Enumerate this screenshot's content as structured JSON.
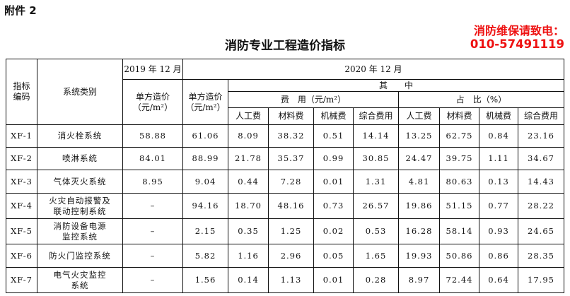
{
  "attachment_label": "附件 2",
  "title": "消防专业工程造价指标",
  "header": {
    "code": "指标\n编码",
    "category": "系统类别",
    "year2019": "2019 年 12 月",
    "year2020": "2020 年 12 月",
    "unit_price": "单方造价\n（元/m²）",
    "among": "其　　中",
    "cost_group": "费　用（元/m²）",
    "ratio_group": "占　比（%）",
    "sub_cols": [
      "人工费",
      "材料费",
      "机械费",
      "综合费用",
      "人工费",
      "材料费",
      "机械费",
      "综合费用"
    ]
  },
  "rows": [
    {
      "code": "XF-1",
      "name": "消火栓系统",
      "p2019": "58.88",
      "p2020": "61.06",
      "cost": [
        "8.09",
        "38.32",
        "0.51",
        "14.14"
      ],
      "ratio": [
        "13.25",
        "62.75",
        "0.84",
        "23.16"
      ]
    },
    {
      "code": "XF-2",
      "name": "喷淋系统",
      "p2019": "84.01",
      "p2020": "88.99",
      "cost": [
        "21.78",
        "35.37",
        "0.99",
        "30.85"
      ],
      "ratio": [
        "24.47",
        "39.75",
        "1.11",
        "34.67"
      ]
    },
    {
      "code": "XF-3",
      "name": "气体灭火系统",
      "p2019": "8.95",
      "p2020": "9.04",
      "cost": [
        "0.44",
        "7.28",
        "0.01",
        "1.31"
      ],
      "ratio": [
        "4.81",
        "80.63",
        "0.13",
        "14.43"
      ]
    },
    {
      "code": "XF-4",
      "name": "火灾自动报警及\n联动控制系统",
      "p2019": "–",
      "p2020": "94.16",
      "cost": [
        "18.70",
        "48.16",
        "0.73",
        "26.57"
      ],
      "ratio": [
        "19.86",
        "51.15",
        "0.77",
        "28.22"
      ]
    },
    {
      "code": "XF-5",
      "name": "消防设备电源\n监控系统",
      "p2019": "–",
      "p2020": "2.15",
      "cost": [
        "0.35",
        "1.25",
        "0.02",
        "0.53"
      ],
      "ratio": [
        "16.28",
        "58.14",
        "0.93",
        "24.65"
      ]
    },
    {
      "code": "XF-6",
      "name": "防火门监控系统",
      "p2019": "–",
      "p2020": "5.82",
      "cost": [
        "1.16",
        "2.96",
        "0.05",
        "1.65"
      ],
      "ratio": [
        "19.93",
        "50.86",
        "0.86",
        "28.35"
      ]
    },
    {
      "code": "XF-7",
      "name": "电气火灾监控\n系统",
      "p2019": "–",
      "p2020": "1.56",
      "cost": [
        "0.14",
        "1.13",
        "0.01",
        "0.28"
      ],
      "ratio": [
        "8.97",
        "72.44",
        "0.64",
        "17.95"
      ]
    }
  ],
  "watermark": {
    "line1": "消防维保请致电：",
    "line2": "010-57491119",
    "color": "#ee1111"
  }
}
